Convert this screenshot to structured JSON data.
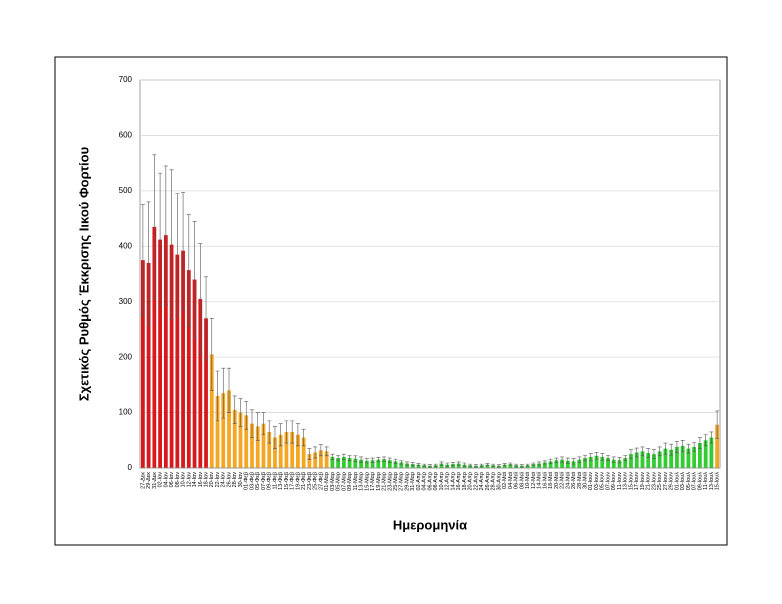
{
  "chart_data": {
    "type": "bar",
    "y_label": "Σχετικός Ρυθμός Έκκρισης Ιικού Φορτίου",
    "x_label": "Ημερομηνία",
    "ylim": [
      0,
      700
    ],
    "yticks": [
      0,
      100,
      200,
      300,
      400,
      500,
      600,
      700
    ],
    "grid": true,
    "categories": [
      "27-Δεκ",
      "29-Δεκ",
      "31-Δεκ",
      "02-Ιαν",
      "04-Ιαν",
      "06-Ιαν",
      "08-Ιαν",
      "10-Ιαν",
      "12-Ιαν",
      "14-Ιαν",
      "16-Ιαν",
      "18-Ιαν",
      "20-Ιαν",
      "22-Ιαν",
      "24-Ιαν",
      "26-Ιαν",
      "28-Ιαν",
      "30-Ιαν",
      "01-Φεβ",
      "03-Φεβ",
      "05-Φεβ",
      "07-Φεβ",
      "09-Φεβ",
      "11-Φεβ",
      "13-Φεβ",
      "15-Φεβ",
      "17-Φεβ",
      "19-Φεβ",
      "21-Φεβ",
      "23-Φεβ",
      "25-Φεβ",
      "27-Φεβ",
      "01-Μαρ",
      "03-Μαρ",
      "05-Μαρ",
      "07-Μαρ",
      "09-Μαρ",
      "11-Μαρ",
      "13-Μαρ",
      "15-Μαρ",
      "17-Μαρ",
      "19-Μαρ",
      "21-Μαρ",
      "23-Μαρ",
      "25-Μαρ",
      "27-Μαρ",
      "29-Μαρ",
      "31-Μαρ",
      "02-Απρ",
      "04-Απρ",
      "06-Απρ",
      "08-Απρ",
      "10-Απρ",
      "12-Απρ",
      "14-Απρ",
      "16-Απρ",
      "18-Απρ",
      "20-Απρ",
      "22-Απρ",
      "24-Απρ",
      "26-Απρ",
      "28-Απρ",
      "30-Απρ",
      "02-Μαϊ",
      "04-Μαϊ",
      "06-Μαϊ",
      "08-Μαϊ",
      "10-Μαϊ",
      "12-Μαϊ",
      "14-Μαϊ",
      "16-Μαϊ",
      "18-Μαϊ",
      "20-Μαϊ",
      "22-Μαϊ",
      "24-Μαϊ",
      "26-Μαϊ",
      "28-Μαϊ",
      "30-Μαϊ",
      "01-Ιουν",
      "03-Ιουν",
      "05-Ιουν",
      "07-Ιουν",
      "09-Ιουν",
      "11-Ιουν",
      "13-Ιουν",
      "15-Ιουν",
      "17-Ιουν",
      "19-Ιουν",
      "21-Ιουν",
      "23-Ιουν",
      "25-Ιουν",
      "27-Ιουν",
      "29-Ιουν",
      "01-Ιουλ",
      "03-Ιουλ",
      "05-Ιουλ",
      "07-Ιουλ",
      "09-Ιουλ",
      "11-Ιουλ",
      "13-Ιουλ",
      "15-Ιουλ"
    ],
    "values": [
      375,
      370,
      435,
      412,
      420,
      403,
      385,
      392,
      357,
      340,
      305,
      270,
      205,
      130,
      135,
      140,
      105,
      100,
      95,
      80,
      75,
      80,
      65,
      55,
      60,
      65,
      65,
      60,
      55,
      25,
      28,
      32,
      30,
      20,
      18,
      20,
      18,
      17,
      15,
      13,
      14,
      15,
      16,
      14,
      12,
      10,
      8,
      7,
      6,
      5,
      4,
      5,
      8,
      6,
      7,
      8,
      6,
      5,
      4,
      5,
      6,
      5,
      4,
      6,
      7,
      5,
      4,
      5,
      7,
      8,
      10,
      12,
      14,
      15,
      13,
      12,
      15,
      18,
      20,
      22,
      20,
      18,
      15,
      14,
      18,
      25,
      28,
      30,
      27,
      25,
      30,
      35,
      33,
      38,
      40,
      35,
      38,
      45,
      50,
      55,
      78
    ],
    "errors": [
      100,
      110,
      130,
      120,
      125,
      135,
      110,
      105,
      100,
      105,
      100,
      75,
      65,
      45,
      45,
      40,
      25,
      25,
      25,
      25,
      25,
      20,
      20,
      20,
      20,
      20,
      20,
      20,
      15,
      10,
      10,
      10,
      8,
      5,
      5,
      5,
      5,
      5,
      5,
      4,
      4,
      4,
      4,
      4,
      4,
      3,
      3,
      3,
      2,
      2,
      2,
      2,
      3,
      3,
      3,
      3,
      3,
      2,
      2,
      2,
      2,
      2,
      2,
      2,
      2,
      2,
      2,
      2,
      2,
      3,
      3,
      4,
      4,
      5,
      5,
      5,
      5,
      5,
      6,
      6,
      6,
      5,
      5,
      5,
      5,
      8,
      8,
      8,
      8,
      8,
      8,
      10,
      10,
      10,
      10,
      8,
      8,
      10,
      10,
      10,
      25
    ],
    "colors": [
      "#d7191c",
      "#d7191c",
      "#d7191c",
      "#d7191c",
      "#d7191c",
      "#d7191c",
      "#d7191c",
      "#d7191c",
      "#d7191c",
      "#d7191c",
      "#d7191c",
      "#d7191c",
      "#f5a623",
      "#f5a623",
      "#f5a623",
      "#f5a623",
      "#f5a623",
      "#f5a623",
      "#f5a623",
      "#f5a623",
      "#f5a623",
      "#f5a623",
      "#f5a623",
      "#f5a623",
      "#f5a623",
      "#f5a623",
      "#f5a623",
      "#f5a623",
      "#f5a623",
      "#f5a623",
      "#f5a623",
      "#f5a623",
      "#f5a623",
      "#33cc33",
      "#33cc33",
      "#33cc33",
      "#33cc33",
      "#33cc33",
      "#33cc33",
      "#33cc33",
      "#33cc33",
      "#33cc33",
      "#33cc33",
      "#33cc33",
      "#33cc33",
      "#33cc33",
      "#33cc33",
      "#33cc33",
      "#33cc33",
      "#33cc33",
      "#33cc33",
      "#33cc33",
      "#33cc33",
      "#33cc33",
      "#33cc33",
      "#33cc33",
      "#33cc33",
      "#33cc33",
      "#33cc33",
      "#33cc33",
      "#33cc33",
      "#33cc33",
      "#33cc33",
      "#33cc33",
      "#33cc33",
      "#33cc33",
      "#33cc33",
      "#33cc33",
      "#33cc33",
      "#33cc33",
      "#33cc33",
      "#33cc33",
      "#33cc33",
      "#33cc33",
      "#33cc33",
      "#33cc33",
      "#33cc33",
      "#33cc33",
      "#33cc33",
      "#33cc33",
      "#33cc33",
      "#33cc33",
      "#33cc33",
      "#33cc33",
      "#33cc33",
      "#33cc33",
      "#33cc33",
      "#33cc33",
      "#33cc33",
      "#33cc33",
      "#33cc33",
      "#33cc33",
      "#33cc33",
      "#33cc33",
      "#33cc33",
      "#33cc33",
      "#33cc33",
      "#33cc33",
      "#33cc33",
      "#33cc33",
      "#f5a623"
    ]
  }
}
